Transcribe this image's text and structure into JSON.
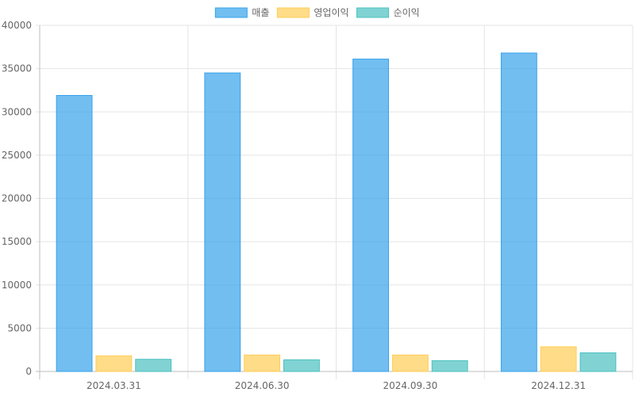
{
  "chart_data": {
    "type": "bar",
    "categories": [
      "2024.03.31",
      "2024.06.30",
      "2024.09.30",
      "2024.12.31"
    ],
    "series": [
      {
        "name": "매출",
        "values": [
          31900,
          34500,
          36100,
          36800
        ],
        "fill": "#36a2eb",
        "stroke": "#36a2eb"
      },
      {
        "name": "영업이익",
        "values": [
          1800,
          1900,
          1900,
          2850
        ],
        "fill": "#ffcd56",
        "stroke": "#ffcd56"
      },
      {
        "name": "순이익",
        "values": [
          1400,
          1350,
          1250,
          2150
        ],
        "fill": "#4bc0c0",
        "stroke": "#4bc0c0"
      }
    ],
    "ylim": [
      0,
      40000
    ],
    "yticks": [
      "0",
      "5000",
      "10000",
      "15000",
      "20000",
      "25000",
      "30000",
      "35000",
      "40000"
    ],
    "grid": true,
    "legend": "top-center"
  }
}
